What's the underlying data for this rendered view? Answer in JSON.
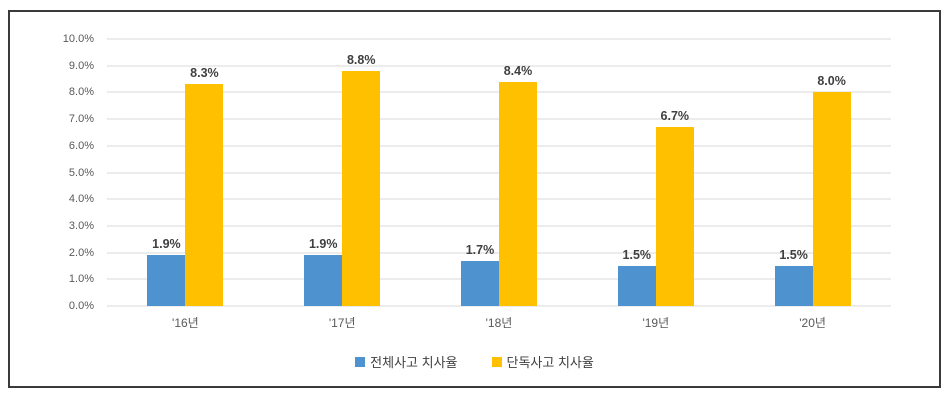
{
  "chart_data": {
    "type": "bar",
    "categories": [
      "'16년",
      "'17년",
      "'18년",
      "'19년",
      "'20년"
    ],
    "series": [
      {
        "name": "전체사고 치사율",
        "color": "#4e93cf",
        "values": [
          1.9,
          1.9,
          1.7,
          1.5,
          1.5
        ],
        "labels": [
          "1.9%",
          "1.9%",
          "1.7%",
          "1.5%",
          "1.5%"
        ]
      },
      {
        "name": "단독사고 치사율",
        "color": "#ffc000",
        "values": [
          8.3,
          8.8,
          8.4,
          6.7,
          8.0
        ],
        "labels": [
          "8.3%",
          "8.8%",
          "8.4%",
          "6.7%",
          "8.0%"
        ]
      }
    ],
    "title": "",
    "xlabel": "",
    "ylabel": "",
    "ylim": [
      0,
      10
    ],
    "ytick_step": 1,
    "ytick_labels": [
      "0.0%",
      "1.0%",
      "2.0%",
      "3.0%",
      "4.0%",
      "5.0%",
      "6.0%",
      "7.0%",
      "8.0%",
      "9.0%",
      "10.0%"
    ],
    "grid": true,
    "legend_position": "bottom"
  },
  "colors": {
    "gridline": "#d9d9d9",
    "tick_label": "#595959",
    "data_label": "#404040",
    "figure_border": "#3a3a3a",
    "series_total": "#4e93cf",
    "series_single": "#ffc000"
  }
}
